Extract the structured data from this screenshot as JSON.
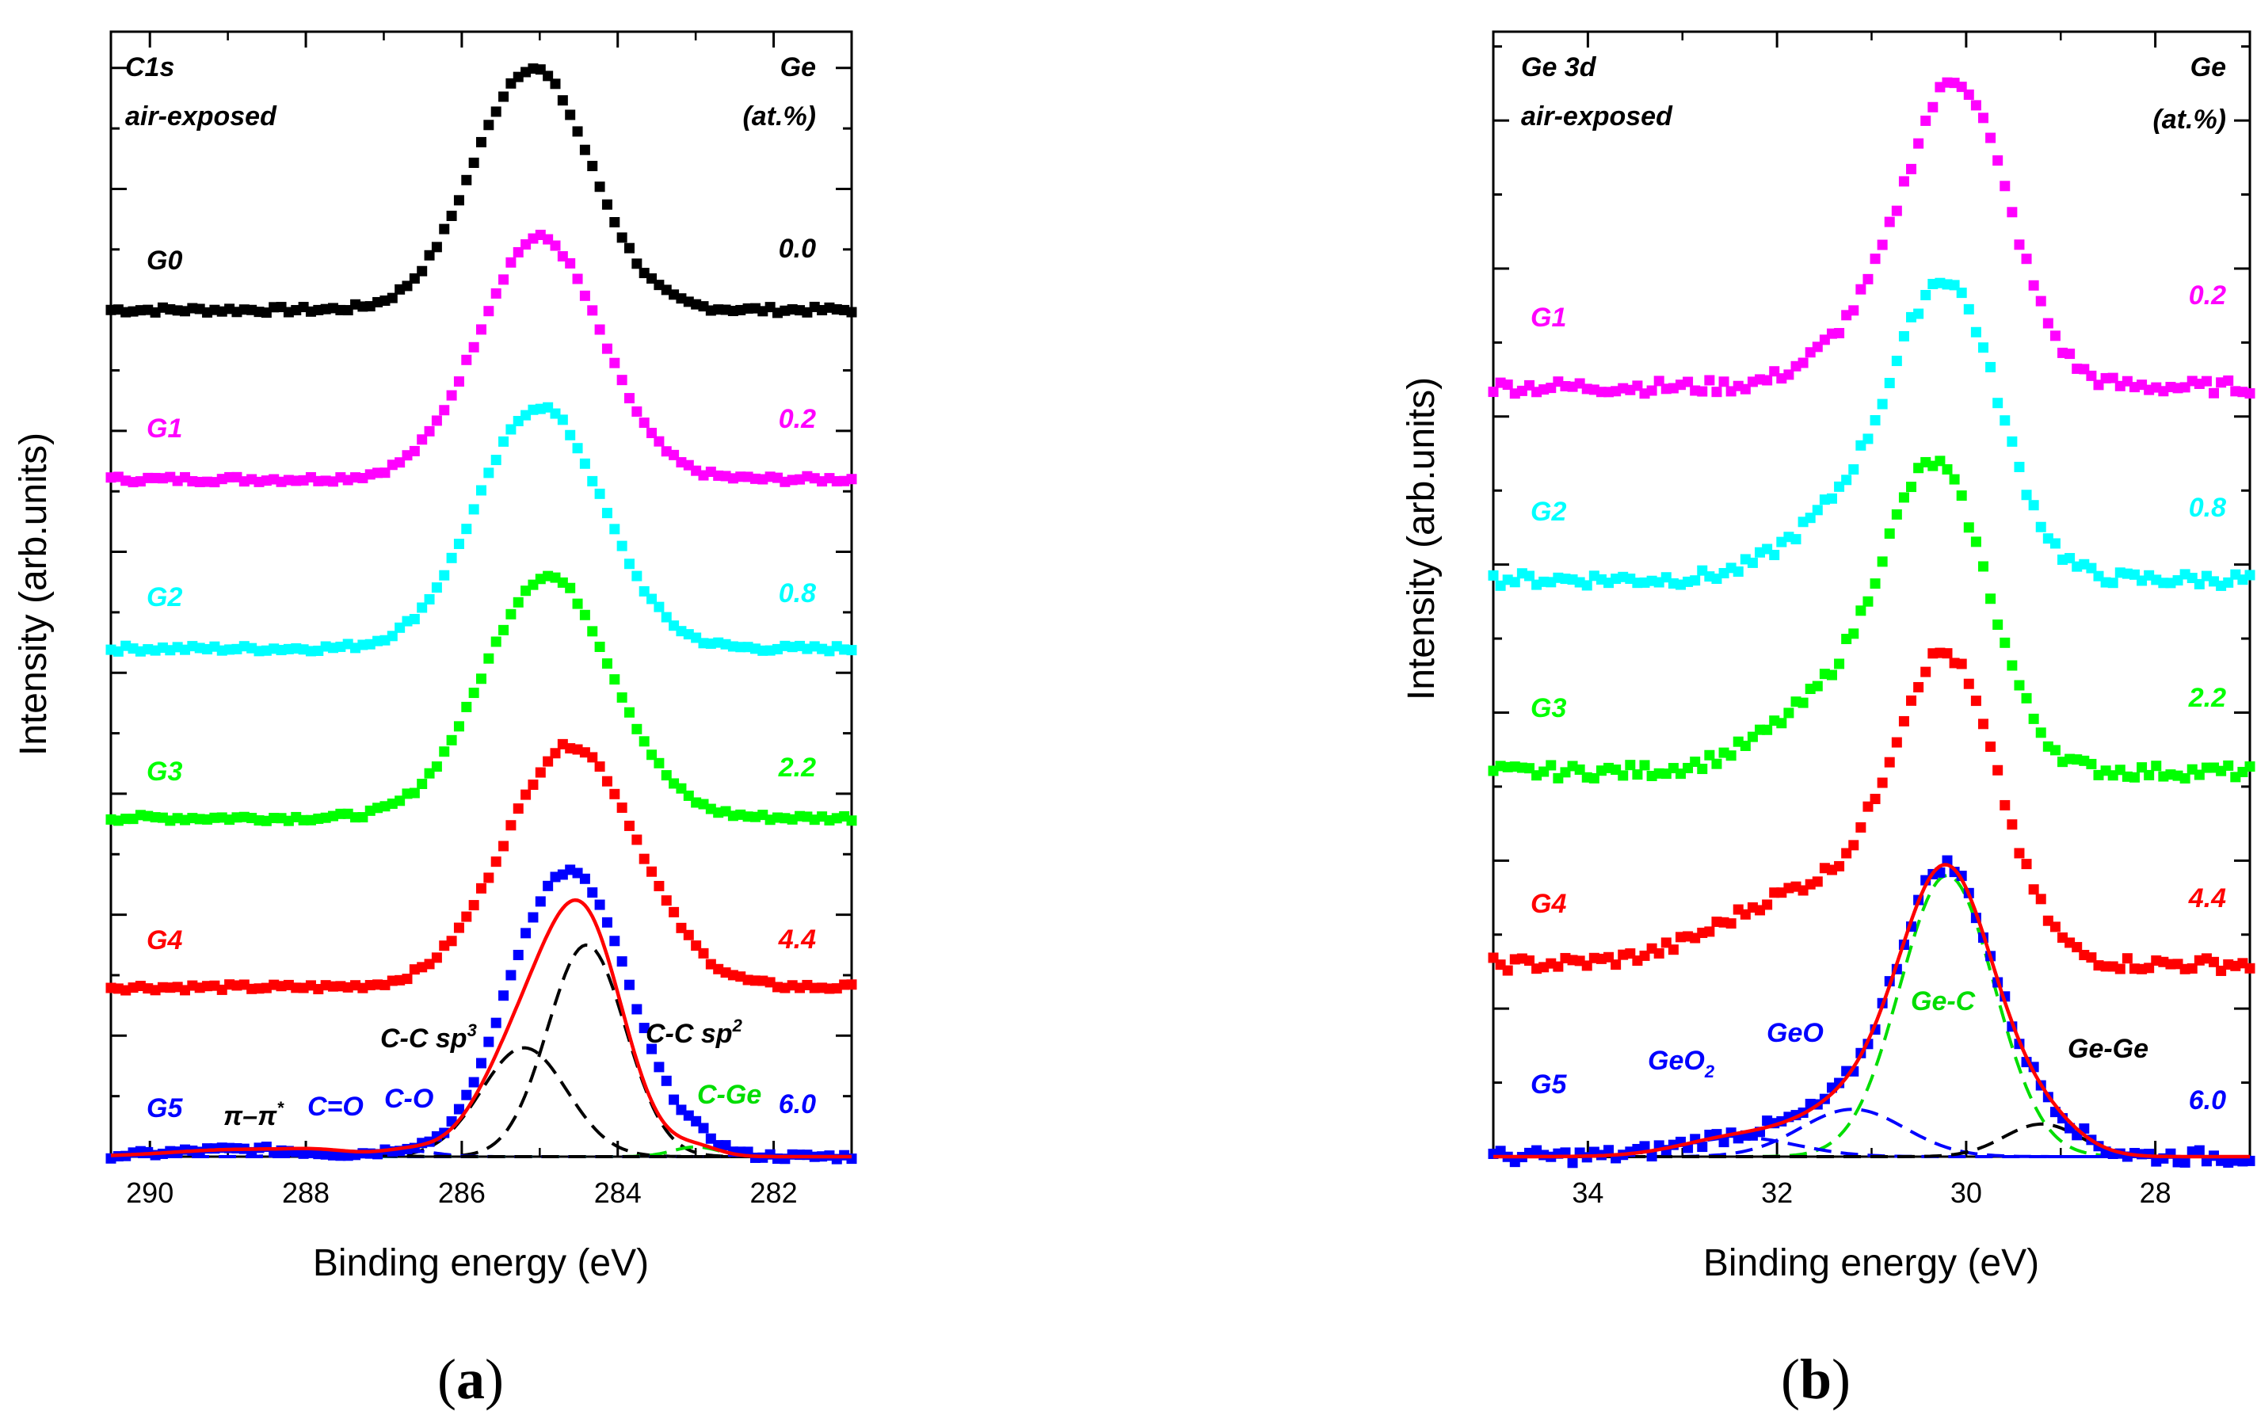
{
  "colors": {
    "G0": "#000000",
    "G1": "#ff00ff",
    "G2": "#00ffff",
    "G3": "#00ff00",
    "G4": "#ff0000",
    "G5": "#0000ff",
    "fit": "#ff0000",
    "black_dash": "#000000",
    "green_dash": "#00dd00",
    "blue_dash": "#0000ff"
  },
  "chart_data": [
    {
      "type": "scatter",
      "panel_label": "(a)",
      "title_line1": "C1s",
      "title_line2": "air-exposed",
      "legend_head1": "Ge",
      "legend_head2": "(at.%)",
      "xlabel": "Binding energy (eV)",
      "ylabel": "Intensity (arb.units)",
      "xlim": [
        290.5,
        281
      ],
      "x_ticks": [
        290,
        288,
        286,
        284,
        282
      ],
      "x_tick_labels": [
        "290",
        "288",
        "286",
        "284",
        "282"
      ],
      "ylim": [
        0,
        9.3
      ],
      "series": [
        {
          "name": "G0",
          "ge": "0.0",
          "baseline": 7.0,
          "peaks": [
            {
              "x": 285.1,
              "amp": 2.0,
              "w": 0.75
            }
          ]
        },
        {
          "name": "G1",
          "ge": "0.2",
          "baseline": 5.6,
          "peaks": [
            {
              "x": 285.0,
              "amp": 2.0,
              "w": 0.78
            }
          ]
        },
        {
          "name": "G2",
          "ge": "0.8",
          "baseline": 4.2,
          "peaks": [
            {
              "x": 285.0,
              "amp": 2.0,
              "w": 0.8
            }
          ]
        },
        {
          "name": "G3",
          "ge": "2.2",
          "baseline": 2.8,
          "peaks": [
            {
              "x": 284.9,
              "amp": 2.0,
              "w": 0.82
            }
          ]
        },
        {
          "name": "G4",
          "ge": "4.4",
          "baseline": 1.4,
          "peaks": [
            {
              "x": 284.6,
              "amp": 2.0,
              "w": 0.85
            }
          ]
        },
        {
          "name": "G5",
          "ge": "6.0",
          "baseline": 0.0,
          "peaks": [
            {
              "x": 284.4,
              "amp": 1.95,
              "w": 0.65
            },
            {
              "x": 285.2,
              "amp": 0.9,
              "w": 0.55
            },
            {
              "x": 283.0,
              "amp": 0.08,
              "w": 0.3
            },
            {
              "x": 286.7,
              "amp": 0.05,
              "w": 0.35
            },
            {
              "x": 288.8,
              "amp": 0.06,
              "w": 0.9
            }
          ]
        }
      ],
      "components": [
        {
          "name": "C-C sp3",
          "x": 285.2,
          "amp": 0.9,
          "w": 0.55,
          "color": "black"
        },
        {
          "name": "C-C sp2",
          "x": 284.4,
          "amp": 1.75,
          "w": 0.5,
          "color": "black"
        },
        {
          "name": "C-Ge",
          "x": 283.0,
          "amp": 0.08,
          "w": 0.3,
          "color": "green"
        },
        {
          "name": "C-O",
          "x": 286.7,
          "amp": 0.05,
          "w": 0.35,
          "color": "blue"
        },
        {
          "name": "C=O",
          "x": 287.8,
          "amp": 0.03,
          "w": 0.4,
          "color": "blue"
        },
        {
          "name": "π–π*",
          "x": 288.8,
          "amp": 0.06,
          "w": 0.9,
          "color": "black"
        }
      ],
      "annotations": {
        "cc_sp3": "C-C sp",
        "cc_sp3_sup": "3",
        "cc_sp2": "C-C  sp",
        "cc_sp2_sup": "2",
        "c_ge": "C-Ge",
        "c_o": "C-O",
        "c_eq_o": "C=O",
        "pi": "π–π",
        "pi_sup": "*"
      }
    },
    {
      "type": "scatter",
      "panel_label": "(b)",
      "title_line1": "Ge 3d",
      "title_line2": "air-exposed",
      "legend_head1": "Ge",
      "legend_head2": "(at.%)",
      "xlabel": "Binding energy (eV)",
      "ylabel": "Intensity (arb.units)",
      "xlim": [
        35,
        27
      ],
      "x_ticks": [
        34,
        32,
        30,
        28
      ],
      "x_tick_labels": [
        "34",
        "32",
        "30",
        "28"
      ],
      "ylim": [
        0,
        7.6
      ],
      "series": [
        {
          "name": "G1",
          "ge": "0.2",
          "baseline": 5.2,
          "peaks": [
            {
              "x": 30.1,
              "amp": 2.05,
              "w": 0.55
            },
            {
              "x": 31.2,
              "amp": 0.25,
              "w": 0.5
            }
          ]
        },
        {
          "name": "G2",
          "ge": "0.8",
          "baseline": 3.9,
          "peaks": [
            {
              "x": 30.2,
              "amp": 1.95,
              "w": 0.55
            },
            {
              "x": 31.3,
              "amp": 0.4,
              "w": 0.6
            }
          ]
        },
        {
          "name": "G3",
          "ge": "2.2",
          "baseline": 2.6,
          "peaks": [
            {
              "x": 30.3,
              "amp": 1.95,
              "w": 0.55
            },
            {
              "x": 31.4,
              "amp": 0.45,
              "w": 0.7
            }
          ]
        },
        {
          "name": "G4",
          "ge": "4.4",
          "baseline": 1.3,
          "peaks": [
            {
              "x": 30.2,
              "amp": 1.95,
              "w": 0.55
            },
            {
              "x": 31.6,
              "amp": 0.5,
              "w": 0.9
            }
          ]
        },
        {
          "name": "G5",
          "ge": "6.0",
          "baseline": 0.0,
          "peaks": [
            {
              "x": 30.2,
              "amp": 1.9,
              "w": 0.5
            },
            {
              "x": 31.2,
              "amp": 0.32,
              "w": 0.55
            },
            {
              "x": 32.4,
              "amp": 0.13,
              "w": 0.6
            },
            {
              "x": 29.2,
              "amp": 0.22,
              "w": 0.4
            }
          ]
        }
      ],
      "components": [
        {
          "name": "Ge-C",
          "x": 30.2,
          "amp": 1.9,
          "w": 0.5,
          "color": "green"
        },
        {
          "name": "GeO",
          "x": 31.2,
          "amp": 0.32,
          "w": 0.55,
          "color": "blue"
        },
        {
          "name": "GeO2",
          "x": 32.4,
          "amp": 0.13,
          "w": 0.6,
          "color": "blue"
        },
        {
          "name": "Ge-Ge",
          "x": 29.2,
          "amp": 0.22,
          "w": 0.4,
          "color": "black"
        }
      ],
      "annotations": {
        "ge_c": "Ge-C",
        "geo": "GeO",
        "geo2": "GeO",
        "geo2_sub": "2",
        "ge_ge": "Ge-Ge"
      }
    }
  ]
}
